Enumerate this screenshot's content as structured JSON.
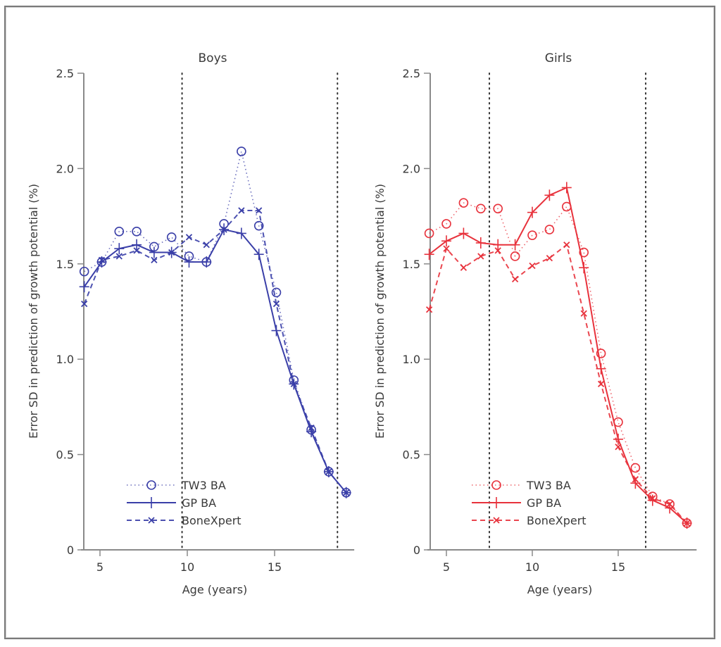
{
  "chart_data": [
    {
      "type": "line",
      "title": "Boys",
      "xlabel": "Age (years)",
      "ylabel": "Error SD in prediction of growth potential (%)",
      "xlim": [
        4.0,
        19.4
      ],
      "ylim": [
        0,
        2.5
      ],
      "xticks": [
        5,
        10,
        15
      ],
      "yticks": [
        0,
        0.5,
        1.0,
        1.5,
        2.0,
        2.5
      ],
      "ytick_labels": [
        "0",
        "0.5",
        "1.0",
        "1.5",
        "2.0",
        "2.5"
      ],
      "vlines": [
        9.7,
        18.6
      ],
      "color": "#3a3fa8",
      "legend": "bottom-left",
      "x": [
        4.1,
        5.1,
        6.1,
        7.1,
        8.1,
        9.1,
        10.1,
        11.1,
        12.1,
        13.1,
        14.1,
        15.1,
        16.1,
        17.1,
        18.1,
        19.1
      ],
      "series": [
        {
          "name": "TW3 BA",
          "style": "dotted-circle",
          "values": [
            1.46,
            1.51,
            1.67,
            1.67,
            1.59,
            1.64,
            1.54,
            1.51,
            1.71,
            2.09,
            1.7,
            1.35,
            0.89,
            0.63,
            0.41,
            0.3
          ]
        },
        {
          "name": "GP BA",
          "style": "solid-plus",
          "values": [
            1.38,
            1.51,
            1.58,
            1.6,
            1.56,
            1.56,
            1.51,
            1.51,
            1.68,
            1.66,
            1.55,
            1.15,
            0.87,
            0.62,
            0.41,
            0.3
          ]
        },
        {
          "name": "BoneXpert",
          "style": "dashed-cross",
          "values": [
            1.29,
            1.52,
            1.54,
            1.57,
            1.52,
            1.56,
            1.64,
            1.6,
            1.68,
            1.78,
            1.78,
            1.29,
            0.87,
            0.64,
            0.41,
            0.3
          ]
        }
      ]
    },
    {
      "type": "line",
      "title": "Girls",
      "xlabel": "Age (years)",
      "ylabel": "Error SD in prediction of growth potential (%)",
      "xlim": [
        4.0,
        19.4
      ],
      "ylim": [
        0,
        2.5
      ],
      "xticks": [
        5,
        10,
        15
      ],
      "yticks": [
        0,
        0.5,
        1.0,
        1.5,
        2.0,
        2.5
      ],
      "ytick_labels": [
        "0",
        "0.5",
        "1.0",
        "1.5",
        "2.0",
        "2.5"
      ],
      "vlines": [
        7.5,
        16.6
      ],
      "color": "#e8323c",
      "legend": "bottom-left",
      "x": [
        4.0,
        5.0,
        6.0,
        7.0,
        8.0,
        9.0,
        10.0,
        11.0,
        12.0,
        13.0,
        14.0,
        15.0,
        16.0,
        17.0,
        18.0,
        19.0
      ],
      "series": [
        {
          "name": "TW3 BA",
          "style": "dotted-circle",
          "values": [
            1.66,
            1.71,
            1.82,
            1.79,
            1.79,
            1.54,
            1.65,
            1.68,
            1.8,
            1.56,
            1.03,
            0.67,
            0.43,
            0.28,
            0.24,
            0.14
          ]
        },
        {
          "name": "GP BA",
          "style": "solid-plus",
          "values": [
            1.55,
            1.62,
            1.66,
            1.61,
            1.6,
            1.6,
            1.77,
            1.86,
            1.9,
            1.48,
            0.95,
            0.58,
            0.35,
            0.26,
            0.22,
            0.14
          ]
        },
        {
          "name": "BoneXpert",
          "style": "dashed-cross",
          "values": [
            1.26,
            1.58,
            1.48,
            1.54,
            1.57,
            1.42,
            1.49,
            1.53,
            1.6,
            1.24,
            0.87,
            0.54,
            0.37,
            0.27,
            0.24,
            0.14
          ]
        }
      ]
    }
  ]
}
